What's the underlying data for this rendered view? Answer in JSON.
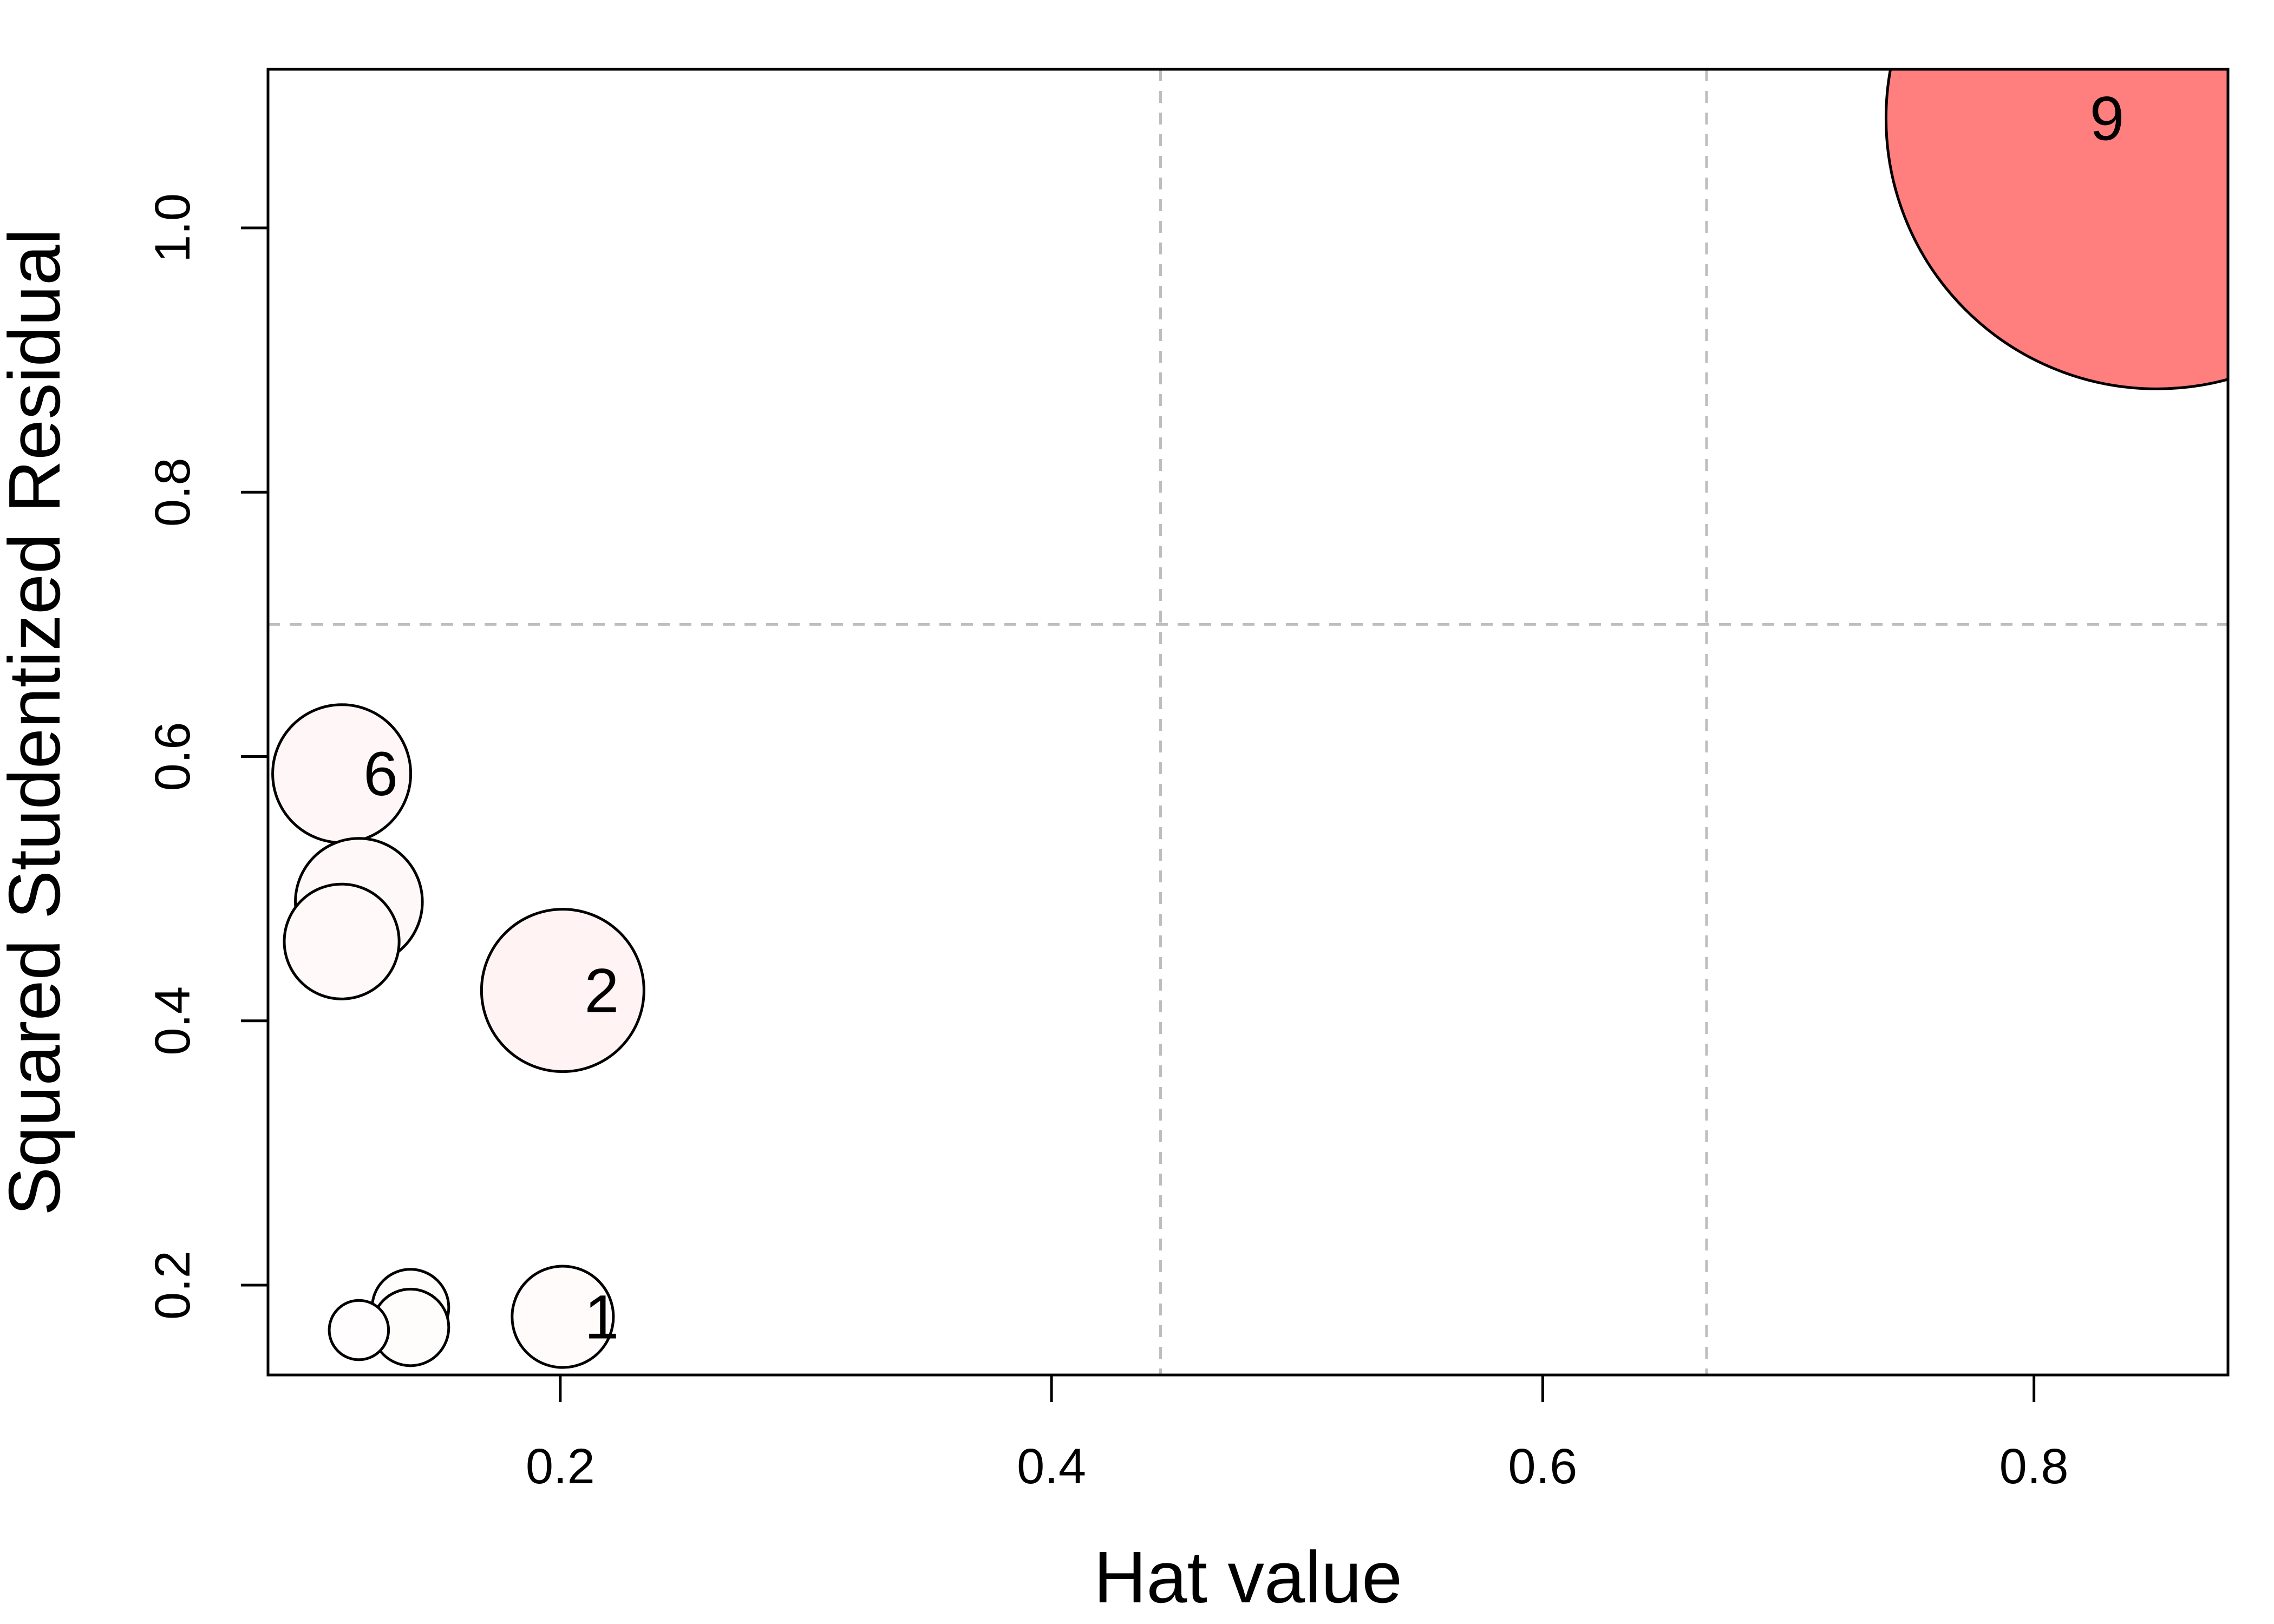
{
  "chart_data": {
    "type": "scatter",
    "title": "",
    "xlabel": "Hat value",
    "ylabel": "Squared Studentized Residual",
    "xlim": [
      0.081,
      0.879
    ],
    "ylim": [
      0.132,
      1.12
    ],
    "xticks": [
      0.2,
      0.4,
      0.6,
      0.8
    ],
    "yticks": [
      0.2,
      0.4,
      0.6,
      0.8,
      1.0
    ],
    "xtick_labels": [
      "0.2",
      "0.4",
      "0.6",
      "0.8"
    ],
    "ytick_labels": [
      "0.2",
      "0.4",
      "0.6",
      "0.8",
      "1.0"
    ],
    "reference_lines": {
      "vertical": [
        0.4444,
        0.6667
      ],
      "horizontal": [
        0.7
      ]
    },
    "grid": false,
    "legend": "none",
    "bubble_fill_low": "#ffffff",
    "bubble_fill_high": "#ff7f7f",
    "points": [
      {
        "id": "1",
        "hat": 0.201,
        "resid_sq": 0.176,
        "influence": 0.035,
        "label": "1"
      },
      {
        "id": "2",
        "hat": 0.201,
        "resid_sq": 0.423,
        "influence": 0.09,
        "label": "2"
      },
      {
        "id": "3",
        "hat": 0.111,
        "resid_sq": 0.46,
        "influence": 0.045,
        "label": ""
      },
      {
        "id": "4",
        "hat": 0.118,
        "resid_sq": 0.49,
        "influence": 0.055,
        "label": ""
      },
      {
        "id": "5",
        "hat": 0.139,
        "resid_sq": 0.183,
        "influence": 0.02,
        "label": ""
      },
      {
        "id": "6",
        "hat": 0.111,
        "resid_sq": 0.587,
        "influence": 0.065,
        "label": "6"
      },
      {
        "id": "7",
        "hat": 0.139,
        "resid_sq": 0.168,
        "influence": 0.02,
        "label": ""
      },
      {
        "id": "8",
        "hat": 0.118,
        "resid_sq": 0.166,
        "influence": 0.012,
        "label": ""
      },
      {
        "id": "9",
        "hat": 0.85,
        "resid_sq": 1.083,
        "influence": 1.0,
        "label": "9"
      }
    ]
  }
}
